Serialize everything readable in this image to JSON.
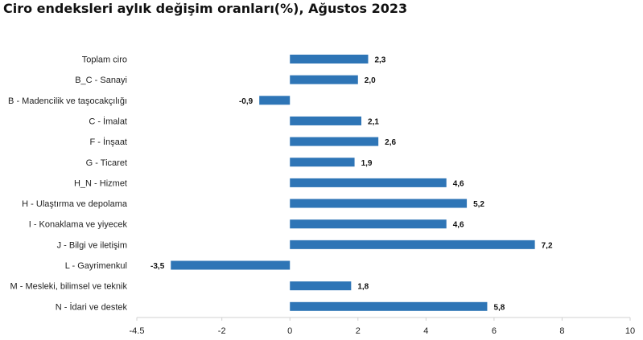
{
  "title": "Ciro endeksleri aylık değişim oranları(%), Ağustos 2023",
  "chart_data": {
    "type": "bar",
    "orientation": "horizontal",
    "title": "Ciro endeksleri aylık değişim oranları(%), Ağustos 2023",
    "categories": [
      "Toplam ciro",
      "B_C - Sanayi",
      "B - Madencilik ve taşocakçılığı",
      "C - İmalat",
      "F - İnşaat",
      "G - Ticaret",
      "H_N - Hizmet",
      "H - Ulaştırma ve depolama",
      "I - Konaklama ve yiyecek",
      "J - Bilgi ve iletişim",
      "L - Gayrimenkul",
      "M - Mesleki, bilimsel ve teknik",
      "N - İdari ve destek"
    ],
    "values": [
      2.3,
      2.0,
      -0.9,
      2.1,
      2.6,
      1.9,
      4.6,
      5.2,
      4.6,
      7.2,
      -3.5,
      1.8,
      5.8
    ],
    "value_labels": [
      "2,3",
      "2,0",
      "-0,9",
      "2,1",
      "2,6",
      "1,9",
      "4,6",
      "5,2",
      "4,6",
      "7,2",
      "-3,5",
      "1,8",
      "5,8"
    ],
    "xlim": [
      -4.5,
      10
    ],
    "xticks": [
      -4.5,
      -2,
      0,
      2,
      4,
      6,
      8,
      10
    ],
    "xtick_labels": [
      "-4.5",
      "-2",
      "0",
      "2",
      "4",
      "6",
      "8",
      "10"
    ],
    "xlabel": "",
    "ylabel": "",
    "grid": false,
    "legend": "none",
    "bar_color": "#2e75b6"
  }
}
